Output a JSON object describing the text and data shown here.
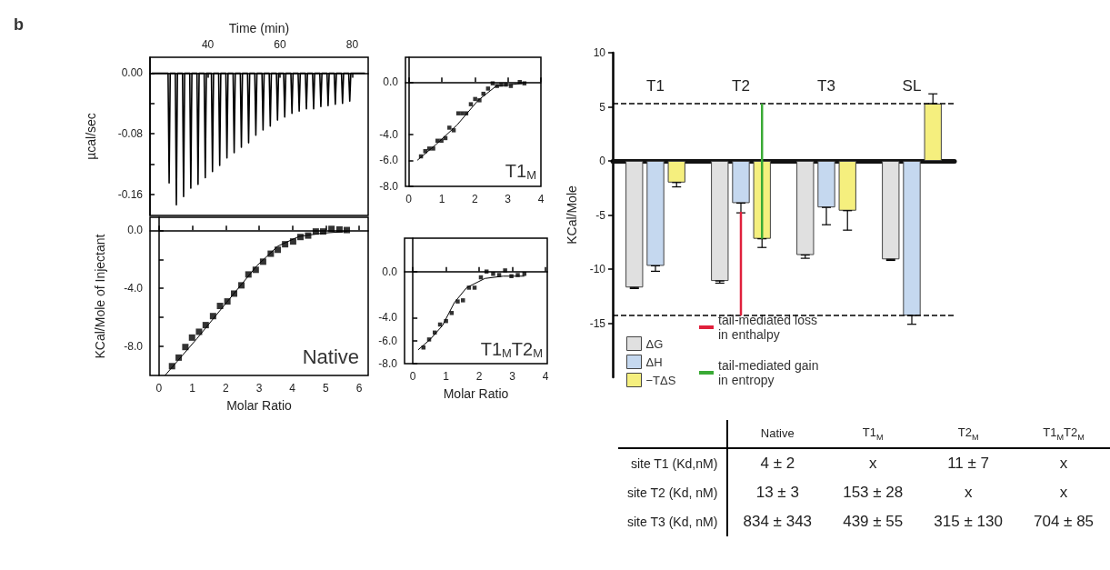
{
  "chart_data": [
    {
      "type": "line",
      "xlabel": "Time (min)",
      "ylabel": "µcal/sec",
      "annotations": [
        "b"
      ],
      "color": "#000000",
      "marker": "none",
      "xlim": [
        24,
        84.4
      ],
      "xticks": [
        40,
        60,
        80
      ],
      "ylim": [
        -0.188,
        0.021
      ],
      "yticks": [
        {
          "value": 0,
          "label": "0.00"
        },
        {
          "value": -0.04,
          "label": null
        },
        {
          "value": -0.08,
          "label": "-0.08"
        },
        {
          "value": -0.12,
          "label": null
        },
        {
          "value": -0.16,
          "label": "-0.16"
        }
      ],
      "x": [
        24.5,
        29,
        29.3,
        29.6,
        31,
        31.3,
        31.6,
        33,
        33.3,
        33.6,
        35,
        35.3,
        35.6,
        37,
        37.3,
        37.6,
        39,
        39.3,
        39.6,
        41,
        41.3,
        41.6,
        43,
        43.3,
        43.6,
        45,
        45.3,
        45.6,
        47,
        47.3,
        47.6,
        49,
        49.3,
        49.6,
        51,
        51.3,
        51.6,
        53,
        53.3,
        53.6,
        55,
        55.3,
        55.6,
        57,
        57.3,
        57.6,
        59,
        59.3,
        59.6,
        61,
        61.3,
        61.6,
        63,
        63.3,
        63.6,
        65,
        65.3,
        65.6,
        67,
        67.3,
        67.6,
        69,
        69.3,
        69.6,
        71,
        71.3,
        71.6,
        73,
        73.3,
        73.6,
        75,
        75.3,
        75.6,
        77,
        77.3,
        77.6,
        79,
        79.3,
        79.6,
        83.5
      ],
      "values": [
        0,
        0,
        -0.145,
        0,
        0,
        -0.174,
        0,
        0,
        -0.163,
        0,
        0,
        -0.152,
        0,
        0,
        -0.147,
        0,
        0,
        -0.138,
        0,
        0,
        -0.13,
        0,
        0,
        -0.122,
        0,
        0,
        -0.112,
        0,
        0,
        -0.105,
        0,
        0,
        -0.098,
        0,
        0,
        -0.092,
        0,
        0,
        -0.082,
        0,
        0,
        -0.075,
        0,
        0,
        -0.07,
        0,
        0,
        -0.062,
        0,
        0,
        -0.058,
        0,
        0,
        -0.053,
        0,
        0,
        -0.05,
        0,
        0,
        -0.047,
        0,
        0,
        -0.047,
        0,
        0,
        -0.044,
        0,
        0,
        -0.043,
        0,
        0,
        -0.041,
        0,
        0,
        -0.04,
        0,
        0,
        -0.037,
        0,
        0
      ]
    },
    {
      "type": "scatter",
      "xlabel": "Molar Ratio",
      "ylabel": "KCal/Mole of Injectant",
      "annotations": [
        "Native"
      ],
      "xlim": [
        -0.27,
        6.27
      ],
      "xticks": [
        0,
        1,
        2,
        3,
        4,
        5,
        6
      ],
      "ylim": [
        -10,
        0.9
      ],
      "yticks": [
        {
          "value": 0,
          "label": "0.0"
        },
        {
          "value": -2,
          "label": null
        },
        {
          "value": -4,
          "label": "-4.0"
        },
        {
          "value": -6,
          "label": null
        },
        {
          "value": -8,
          "label": "-8.0"
        }
      ],
      "series": [
        {
          "type": "scatter",
          "marker": "square",
          "color": "#000000",
          "x": [
            0.39,
            0.59,
            0.79,
            0.99,
            1.2,
            1.4,
            1.62,
            1.83,
            2.05,
            2.25,
            2.47,
            2.68,
            2.9,
            3.12,
            3.35,
            3.56,
            3.78,
            4.02,
            4.24,
            4.47,
            4.7,
            4.92,
            5.17,
            5.41,
            5.63
          ],
          "values": [
            -9.36,
            -8.77,
            -8.04,
            -7.39,
            -6.99,
            -6.53,
            -5.91,
            -5.21,
            -4.9,
            -4.36,
            -3.79,
            -3.04,
            -2.72,
            -2.16,
            -1.61,
            -1.34,
            -0.96,
            -0.77,
            -0.46,
            -0.36,
            -0.08,
            -0.08,
            0.1,
            0.06,
            0.02
          ]
        },
        {
          "type": "line",
          "marker": "none",
          "color": "#000000",
          "x": [
            0.18,
            1.13,
            2.03,
            2.93,
            3.56,
            4.2,
            4.92,
            5.64
          ],
          "values": [
            -10,
            -7.48,
            -4.96,
            -2.45,
            -1.09,
            -0.42,
            -0.19,
            -0.08
          ]
        }
      ]
    },
    {
      "type": "scatter",
      "annotations": [
        "T1$_{M}$"
      ],
      "xlim": [
        -0.1,
        4
      ],
      "xticks": [
        0,
        1,
        2,
        3,
        4
      ],
      "ylim": [
        -8,
        1.9
      ],
      "yticks": [
        {
          "value": 0,
          "label": "0.0"
        },
        {
          "value": -4,
          "label": "-4.0"
        },
        {
          "value": -6,
          "label": "-6.0"
        },
        {
          "value": -8,
          "label": "-8.0"
        }
      ],
      "series": [
        {
          "type": "scatter",
          "marker": "square",
          "color": "#000000",
          "x": [
            0.37,
            0.5,
            0.62,
            0.74,
            0.87,
            0.99,
            1.11,
            1.23,
            1.36,
            1.5,
            1.62,
            1.74,
            1.88,
            2.01,
            2.14,
            2.26,
            2.4,
            2.54,
            2.67,
            2.8,
            2.94,
            3.09,
            3.36,
            3.5
          ],
          "values": [
            -5.7,
            -5.3,
            -5.1,
            -5.1,
            -4.5,
            -4.5,
            -4.3,
            -3.5,
            -3.7,
            -2.4,
            -2.4,
            -2.4,
            -1.7,
            -1.3,
            -1.4,
            -0.9,
            -0.5,
            -0.1,
            -0.3,
            -0.2,
            -0.2,
            -0.3,
            0,
            -0.1
          ]
        },
        {
          "type": "line",
          "marker": "none",
          "color": "#000000",
          "x": [
            0.26,
            0.82,
            1.46,
            2.1,
            2.65,
            3.47
          ],
          "values": [
            -6,
            -4.8,
            -3.3,
            -1.4,
            -0.3,
            -0.1
          ]
        }
      ]
    },
    {
      "type": "scatter",
      "xlabel": "Molar Ratio",
      "annotations": [
        "T1$_{M}$T2$_{M}$"
      ],
      "xlim": [
        -0.25,
        4.05
      ],
      "xticks": [
        0,
        1,
        2,
        3,
        4
      ],
      "ylim": [
        -8,
        2.9
      ],
      "yticks": [
        {
          "value": 0,
          "label": "0.0"
        },
        {
          "value": -4,
          "label": "-4.0"
        },
        {
          "value": -6,
          "label": "-6.0"
        },
        {
          "value": -8,
          "label": "-8.0"
        }
      ],
      "series": [
        {
          "type": "scatter",
          "marker": "square",
          "color": "#000000",
          "x": [
            0.32,
            0.49,
            0.66,
            0.82,
            1,
            1.17,
            1.35,
            1.51,
            1.69,
            1.86,
            2.05,
            2.22,
            2.42,
            2.6,
            2.78,
            2.97,
            3.16,
            3.36
          ],
          "values": [
            -6.6,
            -5.9,
            -5.3,
            -4.6,
            -4.3,
            -3.6,
            -2.6,
            -2.5,
            -1.4,
            -1.4,
            -0.5,
            0,
            -0.2,
            -0.3,
            0.1,
            -0.4,
            -0.3,
            -0.2
          ]
        },
        {
          "type": "line",
          "marker": "none",
          "color": "#000000",
          "x": [
            0.16,
            0.52,
            0.89,
            1.25,
            1.62,
            2.17,
            2.72,
            3.36
          ],
          "values": [
            -6.8,
            -5.9,
            -4.7,
            -2.7,
            -1.4,
            -0.6,
            -0.4,
            -0.4
          ]
        }
      ]
    },
    {
      "type": "bar",
      "ylabel": "KCal/Mole",
      "categories": [
        "T1",
        "T2",
        "T3",
        "SL"
      ],
      "ylim": [
        -20,
        10
      ],
      "yticks": [
        10,
        5,
        0,
        -5,
        -10,
        -15
      ],
      "legend": "bottom left",
      "series": [
        {
          "name": "ΔG",
          "color": "#e0e0e0",
          "values": [
            -11.7,
            -11.1,
            -8.7,
            -9.1
          ],
          "errors": [
            [
              -11.8,
              -11.7
            ],
            [
              -11.3,
              -11.1
            ],
            [
              -9.0,
              -8.7
            ],
            [
              -9.2,
              -9.1
            ]
          ]
        },
        {
          "name": "ΔH",
          "color": "#c5d8ef",
          "values": [
            -9.7,
            -3.9,
            -4.3,
            -14.3
          ],
          "errors": [
            [
              -10.2,
              -9.7
            ],
            [
              -4.8,
              -3.9
            ],
            [
              -5.9,
              -4.3
            ],
            [
              -15.1,
              -14.3
            ]
          ]
        },
        {
          "name": "−TΔS",
          "color": "#f5ef7e",
          "values": [
            -2.0,
            -7.2,
            -4.6,
            5.3
          ],
          "errors": [
            [
              -2.4,
              -2.0
            ],
            [
              -8.0,
              -7.2
            ],
            [
              -6.4,
              -4.6
            ],
            [
              5.3,
              6.2
            ]
          ]
        },
        {
          "type": "line",
          "name": "tail-mediated loss in enthalpy",
          "color": "#e0203c",
          "x": [
            "T2",
            "T2"
          ],
          "values": [
            -4.7,
            -14.3
          ]
        },
        {
          "type": "line",
          "name": "tail-mediated gain in entropy",
          "color": "#3aaa35",
          "x": [
            "T2",
            "T2"
          ],
          "values": [
            5.3,
            -7.2
          ]
        }
      ],
      "ref_lines": [
        {
          "axis": "y",
          "value": 5.3,
          "label": null,
          "color": "#000000",
          "line_style": "dashed"
        },
        {
          "axis": "y",
          "value": -14.3,
          "label": null,
          "color": "#000000",
          "line_style": "dashed"
        }
      ]
    },
    {
      "type": "other",
      "categories": [
        "Native",
        "T1$_{M}$",
        "T2$_{M}$",
        "T1$_{M}$T2$_{M}$"
      ],
      "y_categories": [
        "site T1 (Kd,nM)",
        "site T2 (Kd, nM)",
        "site T3 (Kd, nM)"
      ],
      "cell_labels": [
        [
          "4 ± 2",
          "x",
          "11 ± 7",
          "x"
        ],
        [
          "13 ± 3",
          "153 ± 28",
          "x",
          "x"
        ],
        [
          "834 ± 343",
          "439 ± 55",
          "315 ± 130",
          "704 ± 85"
        ]
      ]
    }
  ]
}
